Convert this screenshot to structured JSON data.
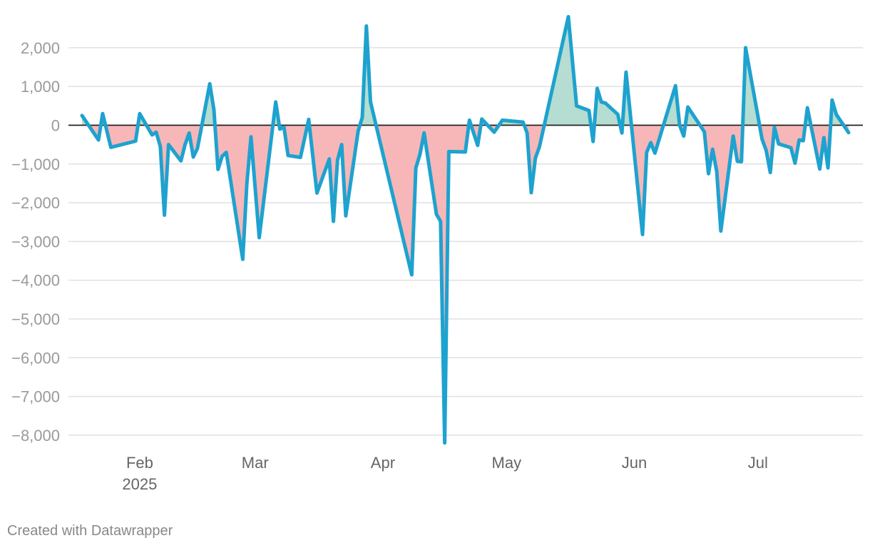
{
  "footer": {
    "credit": "Created with Datawrapper"
  },
  "colors": {
    "line": "#1ea2cf",
    "positive_fill": "#b5ddd1",
    "negative_fill": "#f7b7b8",
    "grid": "#e0e0e0",
    "zero_line": "#222222",
    "tick_text": "#9a9a9a"
  },
  "chart_data": {
    "type": "line",
    "title": "",
    "xlabel": "",
    "ylabel": "",
    "x_domain": [
      "2025-01-18",
      "2025-07-23"
    ],
    "ylim": [
      -8300,
      2850
    ],
    "grid": true,
    "y_ticks": [
      {
        "value": 2000,
        "label": "2,000"
      },
      {
        "value": 1000,
        "label": "1,000"
      },
      {
        "value": 0,
        "label": "0"
      },
      {
        "value": -1000,
        "label": "−1,000"
      },
      {
        "value": -2000,
        "label": "−2,000"
      },
      {
        "value": -3000,
        "label": "−3,000"
      },
      {
        "value": -4000,
        "label": "−4,000"
      },
      {
        "value": -5000,
        "label": "−5,000"
      },
      {
        "value": -6000,
        "label": "−6,000"
      },
      {
        "value": -7000,
        "label": "−7,000"
      },
      {
        "value": -8000,
        "label": "−8,000"
      }
    ],
    "x_ticks": [
      {
        "date": "2025-02-01",
        "label": "Feb",
        "sublabel": "2025"
      },
      {
        "date": "2025-03-01",
        "label": "Mar",
        "sublabel": ""
      },
      {
        "date": "2025-04-01",
        "label": "Apr",
        "sublabel": ""
      },
      {
        "date": "2025-05-01",
        "label": "May",
        "sublabel": ""
      },
      {
        "date": "2025-06-01",
        "label": "Jun",
        "sublabel": ""
      },
      {
        "date": "2025-07-01",
        "label": "Jul",
        "sublabel": ""
      }
    ],
    "series": [
      {
        "points": [
          [
            "2025-01-18",
            250
          ],
          [
            "2025-01-22",
            -380
          ],
          [
            "2025-01-23",
            300
          ],
          [
            "2025-01-25",
            -570
          ],
          [
            "2025-01-31",
            -410
          ],
          [
            "2025-02-01",
            300
          ],
          [
            "2025-02-04",
            -250
          ],
          [
            "2025-02-05",
            -180
          ],
          [
            "2025-02-06",
            -550
          ],
          [
            "2025-02-07",
            -2320
          ],
          [
            "2025-02-08",
            -500
          ],
          [
            "2025-02-11",
            -920
          ],
          [
            "2025-02-12",
            -500
          ],
          [
            "2025-02-13",
            -200
          ],
          [
            "2025-02-14",
            -820
          ],
          [
            "2025-02-15",
            -600
          ],
          [
            "2025-02-18",
            1070
          ],
          [
            "2025-02-19",
            400
          ],
          [
            "2025-02-20",
            -1140
          ],
          [
            "2025-02-21",
            -800
          ],
          [
            "2025-02-22",
            -700
          ],
          [
            "2025-02-26",
            -3460
          ],
          [
            "2025-02-27",
            -1500
          ],
          [
            "2025-02-28",
            -300
          ],
          [
            "2025-03-02",
            -2900
          ],
          [
            "2025-03-06",
            600
          ],
          [
            "2025-03-07",
            -100
          ],
          [
            "2025-03-08",
            -50
          ],
          [
            "2025-03-09",
            -780
          ],
          [
            "2025-03-12",
            -830
          ],
          [
            "2025-03-14",
            150
          ],
          [
            "2025-03-16",
            -1750
          ],
          [
            "2025-03-19",
            -870
          ],
          [
            "2025-03-20",
            -2480
          ],
          [
            "2025-03-21",
            -900
          ],
          [
            "2025-03-22",
            -500
          ],
          [
            "2025-03-23",
            -2340
          ],
          [
            "2025-03-26",
            -150
          ],
          [
            "2025-03-27",
            200
          ],
          [
            "2025-03-28",
            2560
          ],
          [
            "2025-03-29",
            600
          ],
          [
            "2025-04-08",
            -3860
          ],
          [
            "2025-04-09",
            -1100
          ],
          [
            "2025-04-10",
            -750
          ],
          [
            "2025-04-11",
            -200
          ],
          [
            "2025-04-14",
            -2300
          ],
          [
            "2025-04-15",
            -2480
          ],
          [
            "2025-04-16",
            -8200
          ],
          [
            "2025-04-17",
            -680
          ],
          [
            "2025-04-21",
            -690
          ],
          [
            "2025-04-22",
            130
          ],
          [
            "2025-04-24",
            -520
          ],
          [
            "2025-04-25",
            160
          ],
          [
            "2025-04-28",
            -180
          ],
          [
            "2025-04-30",
            130
          ],
          [
            "2025-05-05",
            80
          ],
          [
            "2025-05-06",
            -200
          ],
          [
            "2025-05-07",
            -1740
          ],
          [
            "2025-05-08",
            -850
          ],
          [
            "2025-05-09",
            -550
          ],
          [
            "2025-05-16",
            2800
          ],
          [
            "2025-05-18",
            500
          ],
          [
            "2025-05-21",
            380
          ],
          [
            "2025-05-22",
            -420
          ],
          [
            "2025-05-23",
            950
          ],
          [
            "2025-05-24",
            600
          ],
          [
            "2025-05-25",
            570
          ],
          [
            "2025-05-28",
            280
          ],
          [
            "2025-05-29",
            -200
          ],
          [
            "2025-05-30",
            1370
          ],
          [
            "2025-06-03",
            -2820
          ],
          [
            "2025-06-04",
            -700
          ],
          [
            "2025-06-05",
            -450
          ],
          [
            "2025-06-06",
            -720
          ],
          [
            "2025-06-11",
            1020
          ],
          [
            "2025-06-12",
            0
          ],
          [
            "2025-06-13",
            -280
          ],
          [
            "2025-06-14",
            470
          ],
          [
            "2025-06-18",
            -170
          ],
          [
            "2025-06-19",
            -1250
          ],
          [
            "2025-06-20",
            -620
          ],
          [
            "2025-06-21",
            -1190
          ],
          [
            "2025-06-22",
            -2730
          ],
          [
            "2025-06-25",
            -280
          ],
          [
            "2025-06-26",
            -930
          ],
          [
            "2025-06-27",
            -940
          ],
          [
            "2025-06-28",
            2000
          ],
          [
            "2025-07-02",
            -360
          ],
          [
            "2025-07-03",
            -650
          ],
          [
            "2025-07-04",
            -1220
          ],
          [
            "2025-07-05",
            -50
          ],
          [
            "2025-07-06",
            -480
          ],
          [
            "2025-07-09",
            -580
          ],
          [
            "2025-07-10",
            -980
          ],
          [
            "2025-07-11",
            -380
          ],
          [
            "2025-07-12",
            -400
          ],
          [
            "2025-07-13",
            450
          ],
          [
            "2025-07-16",
            -1130
          ],
          [
            "2025-07-17",
            -320
          ],
          [
            "2025-07-18",
            -1100
          ],
          [
            "2025-07-19",
            650
          ],
          [
            "2025-07-20",
            280
          ],
          [
            "2025-07-23",
            -190
          ]
        ]
      }
    ]
  }
}
